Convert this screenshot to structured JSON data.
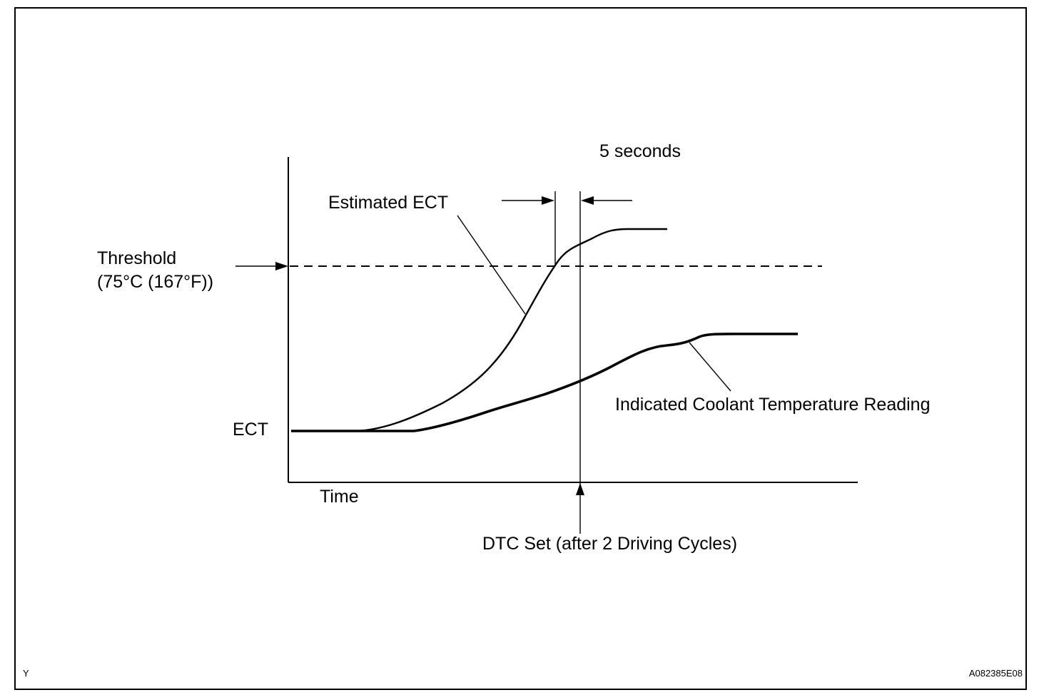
{
  "labels": {
    "five_seconds": "5 seconds",
    "estimated_ect": "Estimated ECT",
    "threshold_line1": "Threshold",
    "threshold_line2": "(75°C (167°F))",
    "ect_axis": "ECT",
    "time_axis": "Time",
    "indicated_reading": "Indicated Coolant Temperature Reading",
    "dtc_set": "DTC Set (after 2 Driving Cycles)",
    "corner_left": "Y",
    "corner_right": "A082385E08"
  }
}
